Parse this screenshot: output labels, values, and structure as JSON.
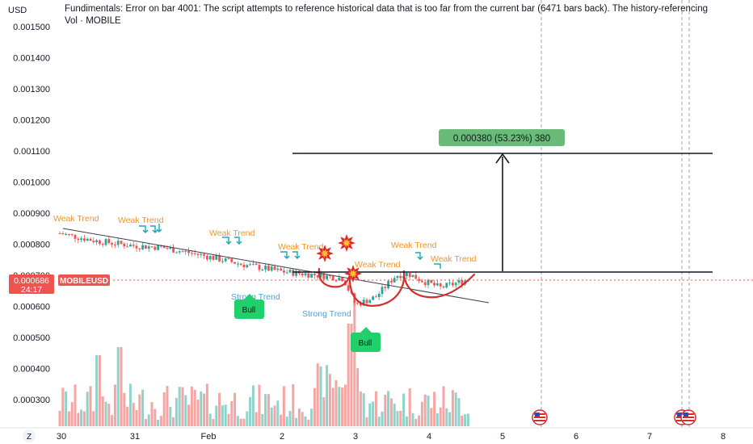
{
  "currency": "USD",
  "notice": {
    "line1": "Fundimentals: Error on bar 4001: The script attempts to reference historical data that is too far from the current bar (6471 bars back). The history-referencing",
    "line2": "Vol · MOBILE"
  },
  "price_tag": {
    "value": "0.000686",
    "countdown": "24:17",
    "symbol": "MOBILEUSD"
  },
  "measure_label": "0.000380 (53.23%) 380",
  "timezone_button": "Z",
  "annotations": {
    "weak_trend": [
      "Weak Trend",
      "Weak Trend",
      "Weak Trend",
      "Weak Trend",
      "Weak Trend",
      "Weak Trend",
      "Weak Trend"
    ],
    "strong_trend": [
      "Strong Trend",
      "Strong Trend"
    ],
    "bull": [
      "Bull",
      "Bull"
    ]
  },
  "colors": {
    "up": "#26a69a",
    "down": "#ef5350",
    "up_vol": "#8fd3cb",
    "down_vol": "#f4a6a4",
    "drawing_red": "#d62b2b",
    "bull_green": "#1fd06b",
    "measure_green": "#6aba78",
    "weak_orange": "#f0952b",
    "strong_blue": "#4aa3df"
  },
  "chart_data": {
    "type": "candlestick",
    "ylim": [
      0.00022,
      0.00153
    ],
    "y_ticks": [
      "0.001500",
      "0.001400",
      "0.001300",
      "0.001200",
      "0.001100",
      "0.001000",
      "0.000900",
      "0.000800",
      "0.000700",
      "0.000600",
      "0.000500",
      "0.000400",
      "0.000300"
    ],
    "x_ticks": [
      "30",
      "31",
      "Feb",
      "2",
      "3",
      "4",
      "5",
      "6",
      "7",
      "8"
    ],
    "series": [
      {
        "x": "30",
        "open": 0.00083,
        "close": 0.000845,
        "high": 0.00086,
        "low": 0.00081
      },
      {
        "x": "30.5",
        "open": 0.000845,
        "close": 0.000815,
        "high": 0.00086,
        "low": 0.0008
      },
      {
        "x": "31",
        "open": 0.000815,
        "close": 0.00081,
        "high": 0.00083,
        "low": 0.00079
      },
      {
        "x": "31.5",
        "open": 0.00081,
        "close": 0.000795,
        "high": 0.000825,
        "low": 0.000785
      },
      {
        "x": "Feb",
        "open": 0.000795,
        "close": 0.000775,
        "high": 0.000805,
        "low": 0.000765
      },
      {
        "x": "1.5",
        "open": 0.000775,
        "close": 0.000745,
        "high": 0.00078,
        "low": 0.00074
      },
      {
        "x": "2",
        "open": 0.000745,
        "close": 0.000715,
        "high": 0.000755,
        "low": 0.000705
      },
      {
        "x": "2.5",
        "open": 0.000715,
        "close": 0.000705,
        "high": 0.00072,
        "low": 0.000695
      },
      {
        "x": "3",
        "open": 0.0007,
        "close": 0.000605,
        "high": 0.00071,
        "low": 0.000595
      },
      {
        "x": "3.3",
        "open": 0.000605,
        "close": 0.00065,
        "high": 0.00066,
        "low": 0.0006
      },
      {
        "x": "3.6",
        "open": 0.00065,
        "close": 0.00071,
        "high": 0.00072,
        "low": 0.000645
      },
      {
        "x": "4",
        "open": 0.0007,
        "close": 0.00066,
        "high": 0.00071,
        "low": 0.00065
      },
      {
        "x": "4.4",
        "open": 0.00066,
        "close": 0.000686,
        "high": 0.000705,
        "low": 0.000655
      }
    ],
    "measure": {
      "from": 0.000713,
      "to": 0.001093,
      "change": "0.000380",
      "percent": "53.23%"
    }
  }
}
